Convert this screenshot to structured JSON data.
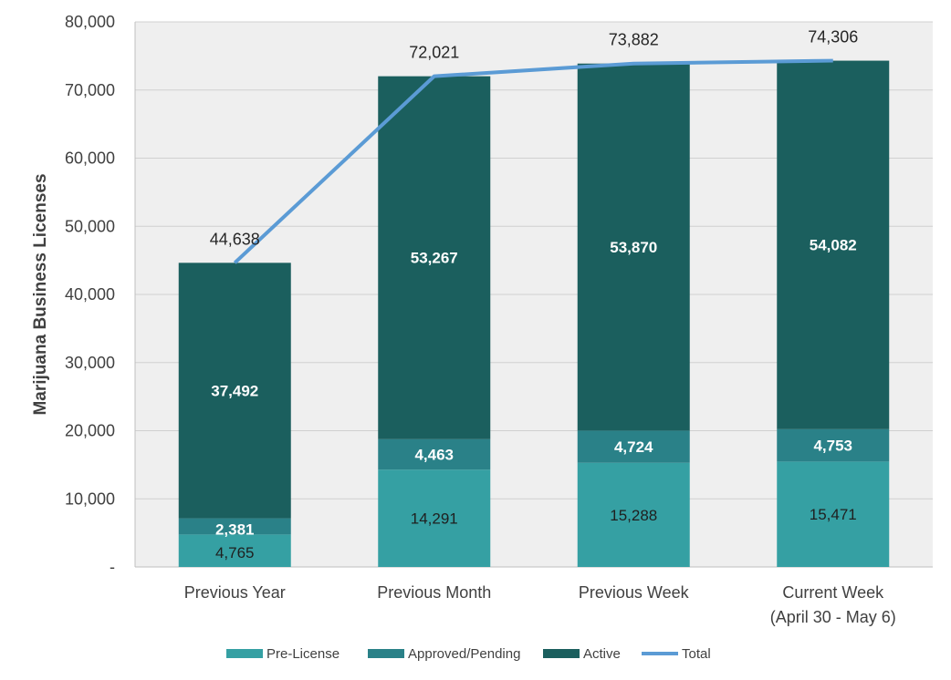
{
  "chart_data": {
    "type": "bar",
    "stacked": true,
    "categories": [
      [
        "Previous Year"
      ],
      [
        "Previous Month"
      ],
      [
        "Previous Week"
      ],
      [
        "Current Week",
        "(April 30 - May 6)"
      ]
    ],
    "series": [
      {
        "name": "Pre-License",
        "values": [
          4765,
          14291,
          15288,
          15471
        ],
        "labels": [
          "4,765",
          "14,291",
          "15,288",
          "15,471"
        ],
        "color": "#35a0a3"
      },
      {
        "name": "Approved/Pending",
        "values": [
          2381,
          4463,
          4724,
          4753
        ],
        "labels": [
          "2,381",
          "4,463",
          "4,724",
          "4,753"
        ],
        "color": "#2a8188"
      },
      {
        "name": "Active",
        "values": [
          37492,
          53267,
          53870,
          54082
        ],
        "labels": [
          "37,492",
          "53,267",
          "53,870",
          "54,082"
        ],
        "color": "#1b5f5e"
      }
    ],
    "line": {
      "name": "Total",
      "type": "line",
      "values": [
        44638,
        72021,
        73882,
        74306
      ],
      "labels": [
        "44,638",
        "72,021",
        "73,882",
        "74,306"
      ],
      "color": "#5b9bd5"
    },
    "ylabel": "Marijuana Business Licenses",
    "ylim": [
      0,
      80000
    ],
    "yticks": [
      {
        "value": 0,
        "label": "-"
      },
      {
        "value": 10000,
        "label": "10,000"
      },
      {
        "value": 20000,
        "label": "20,000"
      },
      {
        "value": 30000,
        "label": "30,000"
      },
      {
        "value": 40000,
        "label": "40,000"
      },
      {
        "value": 50000,
        "label": "50,000"
      },
      {
        "value": 60000,
        "label": "60,000"
      },
      {
        "value": 70000,
        "label": "70,000"
      },
      {
        "value": 80000,
        "label": "80,000"
      }
    ],
    "grid": true,
    "plot_background": "#efefef",
    "legend": {
      "position": "bottom",
      "items": [
        "Pre-License",
        "Approved/Pending",
        "Active",
        "Total"
      ]
    }
  }
}
